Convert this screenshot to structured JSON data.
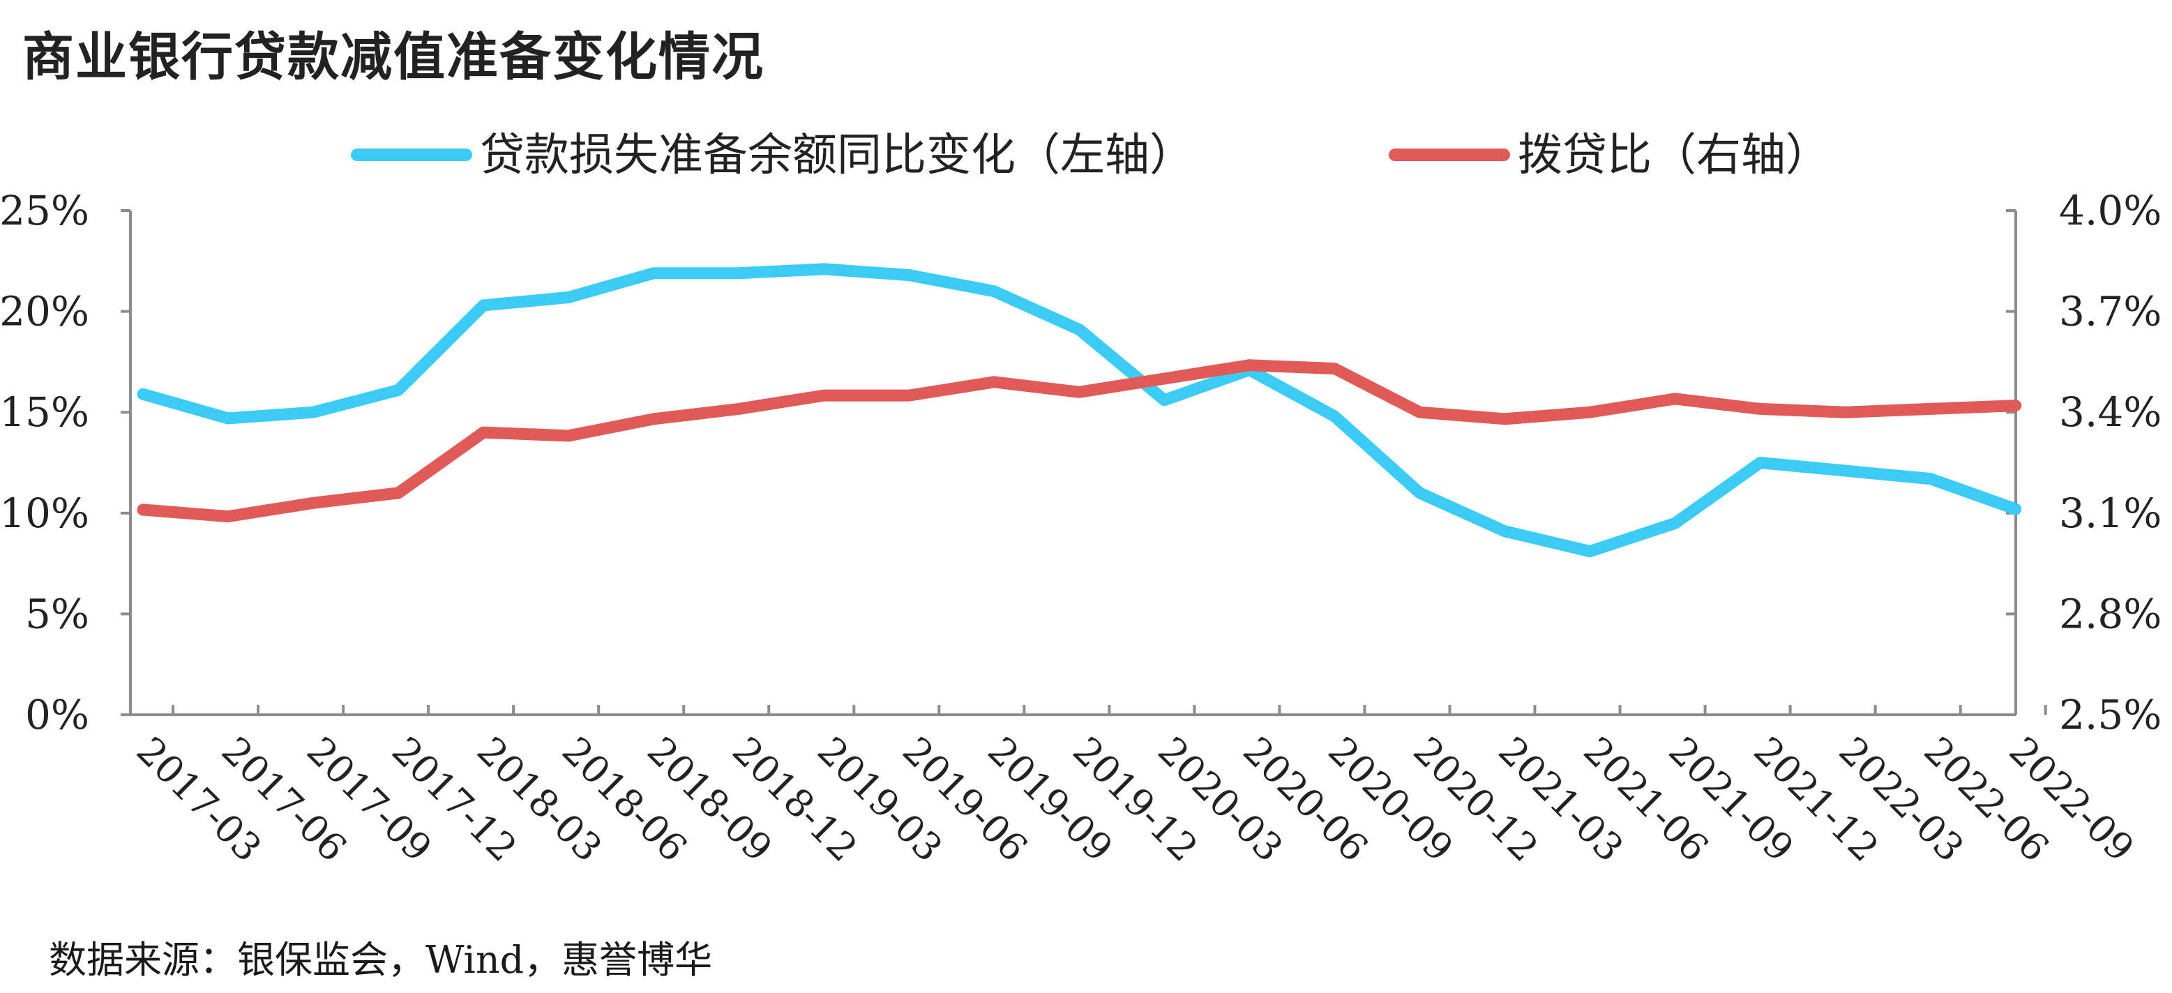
{
  "title": "商业银行贷款减值准备变化情况",
  "source": "数据来源：银保监会，Wind，惠誉博华",
  "colors": {
    "series_left": "#3ccbf4",
    "series_right": "#e05a57",
    "axis": "#8c8c8c"
  },
  "chart_data": {
    "type": "line",
    "categories": [
      "2017-03",
      "2017-06",
      "2017-09",
      "2017-12",
      "2018-03",
      "2018-06",
      "2018-09",
      "2018-12",
      "2019-03",
      "2019-06",
      "2019-09",
      "2019-12",
      "2020-03",
      "2020-06",
      "2020-09",
      "2020-12",
      "2021-03",
      "2021-06",
      "2021-09",
      "2021-12",
      "2022-03",
      "2022-06",
      "2022-09"
    ],
    "y_left": {
      "ticks": [
        "0%",
        "5%",
        "10%",
        "15%",
        "20%",
        "25%"
      ],
      "lim": [
        0,
        25
      ]
    },
    "y_right": {
      "ticks": [
        "2.5%",
        "2.8%",
        "3.1%",
        "3.4%",
        "3.7%",
        "4.0%"
      ],
      "lim": [
        2.5,
        4.0
      ]
    },
    "series": [
      {
        "name": "贷款损失准备余额同比变化（左轴）",
        "axis": "left",
        "values": [
          15.9,
          14.7,
          15.0,
          16.1,
          20.3,
          20.7,
          21.9,
          21.9,
          22.1,
          21.8,
          21.0,
          19.1,
          15.6,
          17.1,
          14.8,
          11.0,
          9.1,
          8.1,
          9.5,
          12.5,
          12.1,
          11.7,
          10.2
        ]
      },
      {
        "name": "拨贷比（右轴）",
        "axis": "right",
        "values": [
          3.11,
          3.09,
          3.13,
          3.16,
          3.34,
          3.33,
          3.38,
          3.41,
          3.45,
          3.45,
          3.49,
          3.46,
          3.5,
          3.54,
          3.53,
          3.4,
          3.38,
          3.4,
          3.44,
          3.41,
          3.4,
          3.41,
          3.42
        ]
      }
    ],
    "grid": false,
    "legend": "top"
  }
}
